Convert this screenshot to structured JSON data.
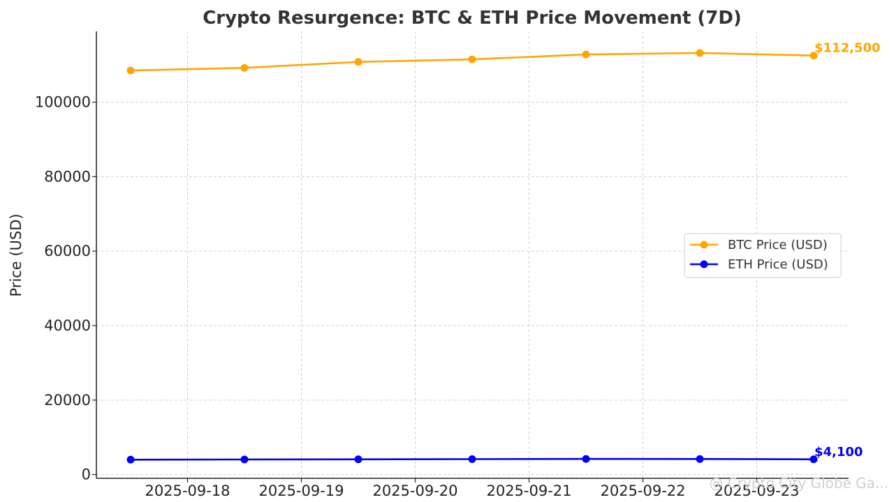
{
  "chart_data": {
    "type": "line",
    "title": "Crypto Resurgence: BTC & ETH Price Movement (7D)",
    "xlabel": "",
    "ylabel": "Price (USD)",
    "x": [
      "2025-09-17T12:00",
      "2025-09-18T12:00",
      "2025-09-19T12:00",
      "2025-09-20T12:00",
      "2025-09-21T12:00",
      "2025-09-22T12:00",
      "2025-09-23T12:00"
    ],
    "xticks": [
      "2025-09-18",
      "2025-09-19",
      "2025-09-20",
      "2025-09-21",
      "2025-09-22",
      "2025-09-23"
    ],
    "yticks": [
      0,
      20000,
      40000,
      60000,
      80000,
      100000
    ],
    "ylim": [
      -1000,
      119000
    ],
    "grid": true,
    "legend_position": "center-right",
    "series": [
      {
        "name": "BTC Price (USD)",
        "color": "#FFA500",
        "values": [
          108500,
          109200,
          110800,
          111500,
          112800,
          113200,
          112500
        ],
        "end_label": "$112,500"
      },
      {
        "name": "ETH Price (USD)",
        "color": "#0000FF",
        "values": [
          4000,
          4050,
          4100,
          4150,
          4200,
          4180,
          4100
        ],
        "end_label": "$4,100"
      }
    ]
  },
  "watermark": "@ Crypto City Globe Ga..."
}
